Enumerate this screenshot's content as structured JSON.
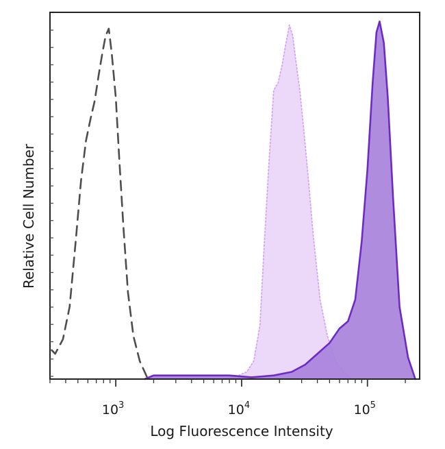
{
  "chart_data": {
    "type": "area",
    "xlabel": "Log Fluorescence Intensity",
    "ylabel": "Relative Cell Number",
    "x_scale": "log10",
    "xlim": [
      300,
      260000
    ],
    "ylim": [
      0,
      100
    ],
    "x_tick_labels": [
      {
        "base": "10",
        "exp": "3",
        "value": 1000
      },
      {
        "base": "10",
        "exp": "4",
        "value": 10000
      },
      {
        "base": "10",
        "exp": "5",
        "value": 100000
      }
    ],
    "series": [
      {
        "line_style": "dashed",
        "fill": "none",
        "stroke": "#4d4d4d",
        "x": [
          310,
          330,
          380,
          430,
          480,
          530,
          580,
          630,
          680,
          730,
          780,
          830,
          880,
          930,
          1000,
          1070,
          1150,
          1250,
          1380,
          1550,
          1800
        ],
        "y": [
          8,
          7,
          11,
          20,
          38,
          55,
          66,
          72,
          77,
          84,
          90,
          95,
          97,
          90,
          78,
          60,
          42,
          24,
          12,
          5,
          0
        ]
      },
      {
        "line_style": "dotted",
        "fill": "#ecd9fa",
        "stroke": "#cfa6f0",
        "x": [
          7000,
          9500,
          11000,
          12500,
          14000,
          15000,
          16500,
          18000,
          19500,
          21000,
          22500,
          24000,
          25500,
          27000,
          29000,
          31000,
          34000,
          37000,
          42000,
          48000,
          56000,
          65000,
          75000
        ],
        "y": [
          0,
          1,
          2,
          5,
          15,
          35,
          60,
          80,
          82,
          87,
          93,
          98,
          95,
          88,
          80,
          70,
          55,
          40,
          22,
          12,
          5,
          2,
          0
        ]
      },
      {
        "line_style": "solid",
        "fill": "#a982dc",
        "stroke": "#6c2bc2",
        "x": [
          1700,
          2000,
          3000,
          5000,
          8000,
          12000,
          18000,
          25000,
          32000,
          40000,
          50000,
          60000,
          70000,
          80000,
          90000,
          100000,
          110000,
          118000,
          125000,
          135000,
          145000,
          160000,
          180000,
          210000,
          240000
        ],
        "y": [
          0,
          1,
          1,
          1,
          1,
          0.5,
          1,
          2,
          4,
          7,
          10,
          14,
          16,
          22,
          38,
          58,
          82,
          96,
          99,
          93,
          78,
          50,
          20,
          6,
          0
        ]
      }
    ]
  }
}
